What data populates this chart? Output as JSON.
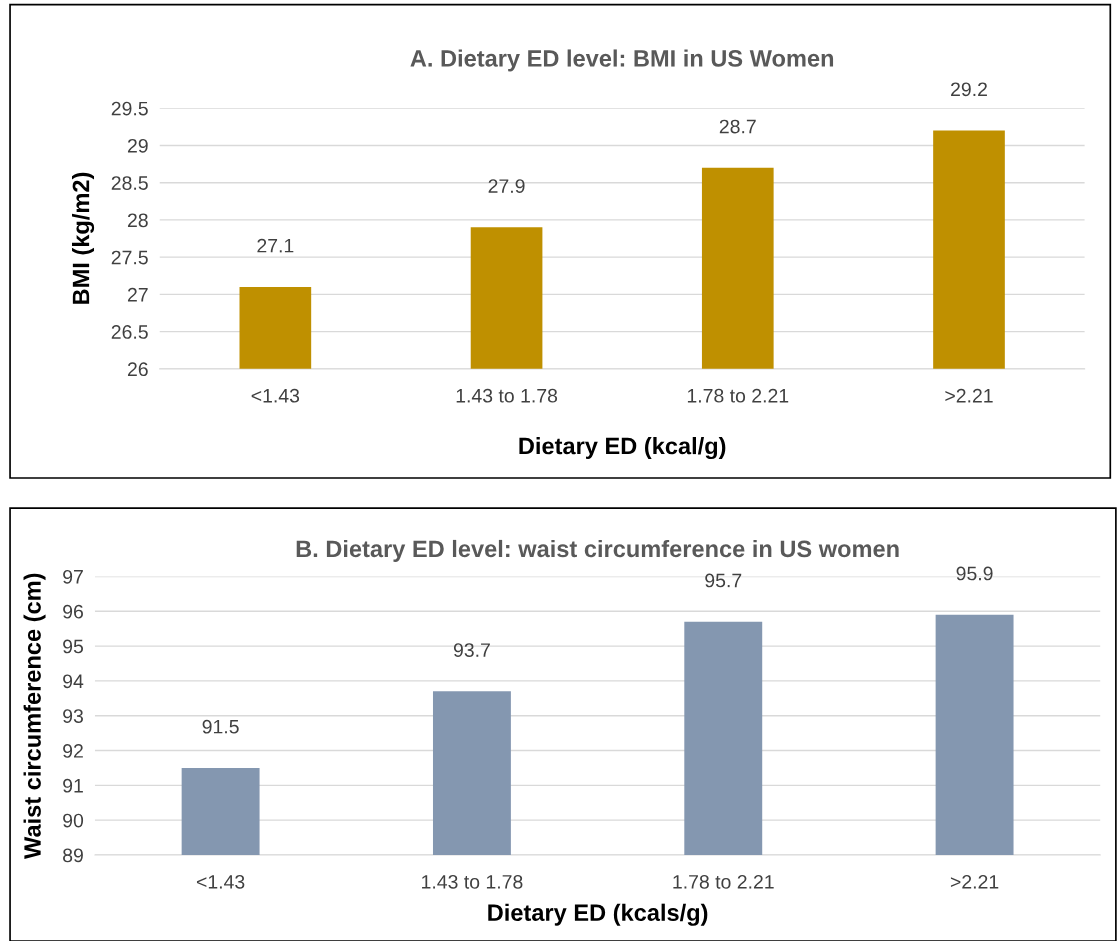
{
  "chart_data": [
    {
      "type": "bar",
      "title": "A. Dietary ED level: BMI in US Women",
      "xlabel": "Dietary ED (kcal/g)",
      "ylabel": "BMI (kg/m2)",
      "categories": [
        "<1.43",
        "1.43 to 1.78",
        "1.78 to 2.21",
        ">2.21"
      ],
      "values": [
        27.1,
        27.9,
        28.7,
        29.2
      ],
      "color": "#bf9000",
      "ylim": [
        26,
        29.5
      ],
      "yticks": [
        26,
        26.5,
        27,
        27.5,
        28,
        28.5,
        29,
        29.5
      ],
      "grid": "y",
      "data_labels": true
    },
    {
      "type": "bar",
      "title": "B. Dietary ED level: waist circumference in US women",
      "xlabel": "Dietary ED (kcals/g)",
      "ylabel": "Waist circumference (cm)",
      "categories": [
        "<1.43",
        "1.43 to 1.78",
        "1.78 to 2.21",
        ">2.21"
      ],
      "values": [
        91.5,
        93.7,
        95.7,
        95.9
      ],
      "color": "#8497b0",
      "ylim": [
        89,
        97
      ],
      "yticks": [
        89,
        90,
        91,
        92,
        93,
        94,
        95,
        96,
        97
      ],
      "grid": "y",
      "data_labels": true
    }
  ]
}
